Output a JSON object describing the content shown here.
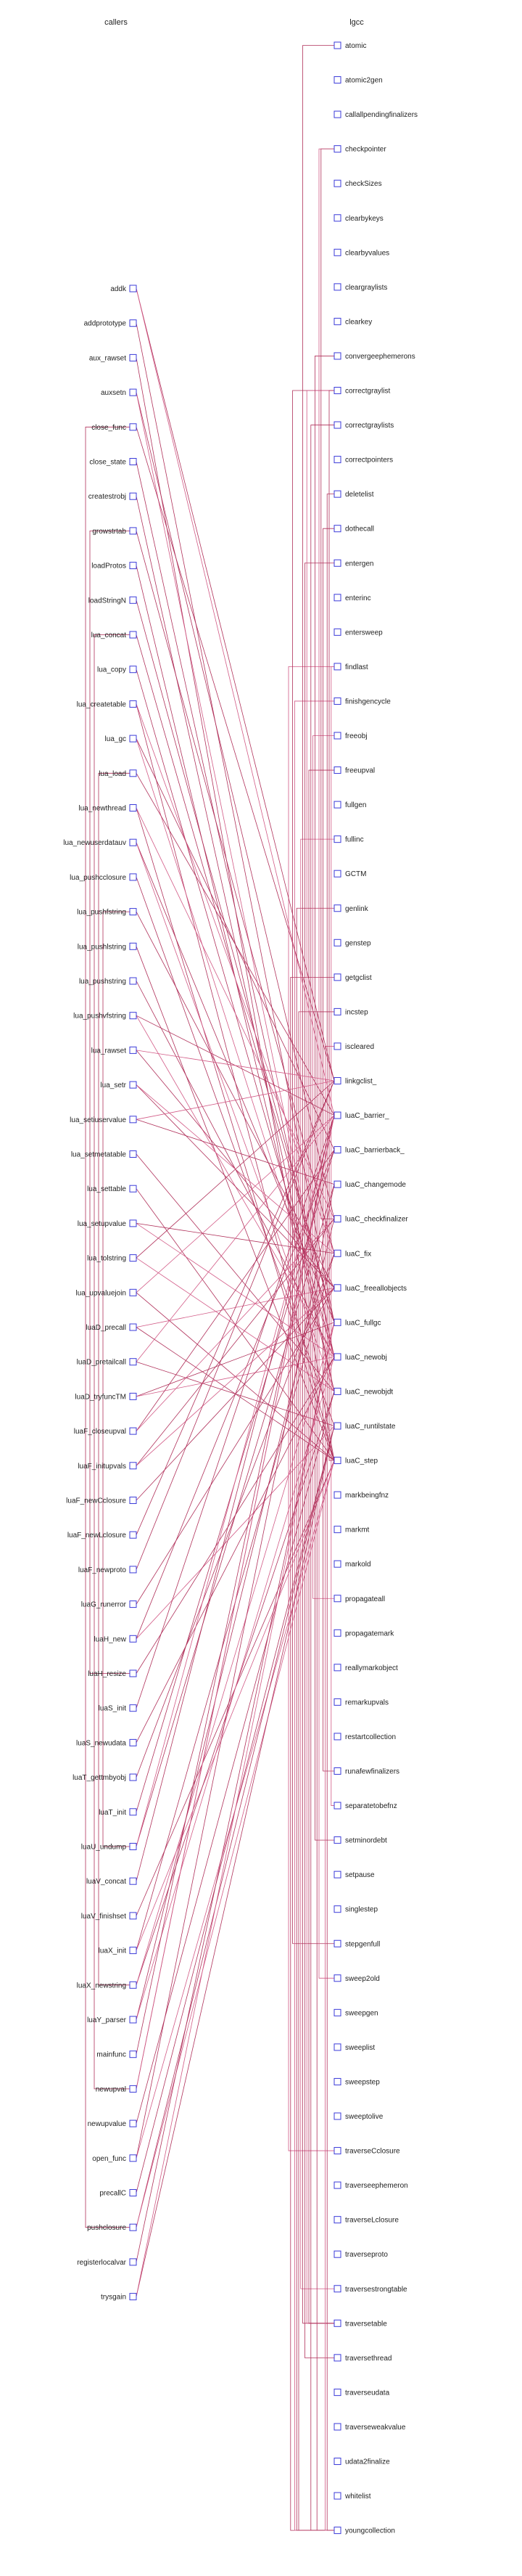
{
  "diagram": {
    "left_title": "callers",
    "right_title": "lgcc",
    "colors": {
      "edge": "#b0305a",
      "edge_alt": "#d25a86",
      "node_border": "#3b3bd9"
    },
    "left_nodes": [
      "addk",
      "addprototype",
      "aux_rawset",
      "auxsetn",
      "close_func",
      "close_state",
      "createstrobj",
      "growstrtab",
      "loadProtos",
      "loadStringN",
      "lua_concat",
      "lua_copy",
      "lua_createtable",
      "lua_gc",
      "lua_load",
      "lua_newthread",
      "lua_newuserdatauv",
      "lua_pushcclosure",
      "lua_pushfstring",
      "lua_pushlstring",
      "lua_pushstring",
      "lua_pushvfstring",
      "lua_rawset",
      "lua_setr",
      "lua_setiuservalue",
      "lua_setmetatable",
      "lua_settable",
      "lua_setupvalue",
      "lua_tolstring",
      "lua_upvaluejoin",
      "luaD_precall",
      "luaD_pretailcall",
      "luaD_tryfuncTM",
      "luaF_closeupval",
      "luaF_initupvals",
      "luaF_newCclosure",
      "luaF_newLclosure",
      "luaF_newproto",
      "luaG_runerror",
      "luaH_new",
      "luaH_resize",
      "luaS_init",
      "luaS_newudata",
      "luaT_gettmbyobj",
      "luaT_init",
      "luaU_undump",
      "luaV_concat",
      "luaV_finishset",
      "luaX_init",
      "luaX_newstring",
      "luaY_parser",
      "mainfunc",
      "newupval",
      "newupvalue",
      "open_func",
      "precallC",
      "pushclosure",
      "registerlocalvar",
      "trysgain"
    ],
    "right_nodes": [
      "atomic",
      "atomic2gen",
      "callallpendingfinalizers",
      "checkpointer",
      "checkSizes",
      "clearbykeys",
      "clearbyvalues",
      "cleargraylists",
      "clearkey",
      "convergeephemerons",
      "correctgraylist",
      "correctgraylists",
      "correctpointers",
      "deletelist",
      "dothecall",
      "entergen",
      "enterinc",
      "entersweep",
      "findlast",
      "finishgencycle",
      "freeobj",
      "freeupval",
      "fullgen",
      "fullinc",
      "GCTM",
      "genlink",
      "genstep",
      "getgclist",
      "incstep",
      "iscleared",
      "linkgclist_",
      "luaC_barrier_",
      "luaC_barrierback_",
      "luaC_changemode",
      "luaC_checkfinalizer",
      "luaC_fix",
      "luaC_freeallobjects",
      "luaC_fullgc",
      "luaC_newobj",
      "luaC_newobjdt",
      "luaC_runtilstate",
      "luaC_step",
      "markbeingfnz",
      "markmt",
      "markold",
      "propagateall",
      "propagatemark",
      "reallymarkobject",
      "remarkupvals",
      "restartcollection",
      "runafewfinalizers",
      "separatetobefnz",
      "setminordebt",
      "setpause",
      "singlestep",
      "stepgenfull",
      "sweep2old",
      "sweepgen",
      "sweeplist",
      "sweepstep",
      "sweeptolive",
      "traverseCclosure",
      "traverseephemeron",
      "traverseLclosure",
      "traverseproto",
      "traversestrongtable",
      "traversetable",
      "traversethread",
      "traverseudata",
      "traverseweakvalue",
      "udata2finalize",
      "whitelist",
      "youngcollection"
    ]
  }
}
